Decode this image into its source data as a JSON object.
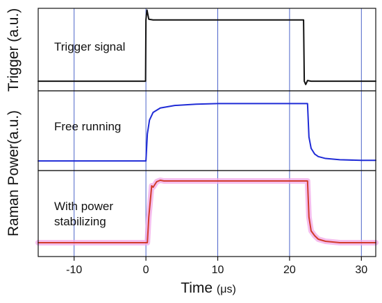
{
  "chart_data": {
    "type": "line",
    "title": "",
    "xlabel": "Time",
    "xlabel_unit": "(μs)",
    "xlim": [
      -15,
      32
    ],
    "xticks": [
      -10,
      0,
      10,
      20,
      30
    ],
    "xtick_labels": [
      "-10",
      "0",
      "10",
      "20",
      "30"
    ],
    "grid": "vertical lines at x ticks",
    "vertical_lines": [
      -10,
      0,
      10,
      20,
      30
    ],
    "grid_color": "#4b63c9",
    "axis_color": "#111111",
    "panels": [
      {
        "name": "trigger",
        "ylabel": "Trigger (a.u.)",
        "label": "Trigger signal",
        "series": [
          {
            "color": "#111111",
            "x": [
              -15,
              -0.05,
              0,
              0.06,
              0.15,
              0.4,
              1,
              5,
              10,
              15,
              20,
              21.95,
              22.05,
              22.25,
              22.5,
              23,
              25,
              32
            ],
            "y": [
              0.02,
              0.02,
              0.95,
              1.02,
              1.1,
              0.96,
              0.95,
              0.95,
              0.95,
              0.95,
              0.95,
              0.95,
              0.02,
              -0.03,
              0.03,
              0.02,
              0.02,
              0.02
            ]
          }
        ]
      },
      {
        "name": "free-running",
        "ylabel": "",
        "label": "Free running",
        "series": [
          {
            "color": "#1f2bd6",
            "x": [
              -15,
              0,
              0.2,
              0.5,
              1,
              2,
              4,
              7,
              10,
              15,
              20,
              22.5,
              22.7,
              23,
              23.5,
              24,
              25,
              27,
              30,
              32
            ],
            "y": [
              0.02,
              0.02,
              0.45,
              0.67,
              0.79,
              0.86,
              0.9,
              0.92,
              0.93,
              0.93,
              0.93,
              0.93,
              0.4,
              0.22,
              0.13,
              0.09,
              0.06,
              0.04,
              0.03,
              0.03
            ]
          }
        ]
      },
      {
        "name": "stabilizing",
        "ylabel": "",
        "label": "With power stabilizing",
        "label_lines": [
          "With power",
          "stabilizing"
        ],
        "series": [
          {
            "color": "#d23b2b",
            "x": [
              -15,
              0.2,
              0.4,
              0.8,
              1,
              1.5,
              2,
              2.5,
              5,
              10,
              15,
              20,
              22.5,
              22.7,
              23,
              23.5,
              24,
              25,
              27,
              32
            ],
            "y": [
              0.08,
              0.08,
              0.45,
              0.9,
              0.88,
              0.96,
              0.98,
              0.97,
              0.97,
              0.97,
              0.97,
              0.97,
              0.97,
              0.45,
              0.25,
              0.18,
              0.13,
              0.1,
              0.08,
              0.08
            ]
          }
        ],
        "highlight_color": "#f2a8e8"
      }
    ],
    "shared_ylabel": "Raman Power(a.u.)"
  }
}
